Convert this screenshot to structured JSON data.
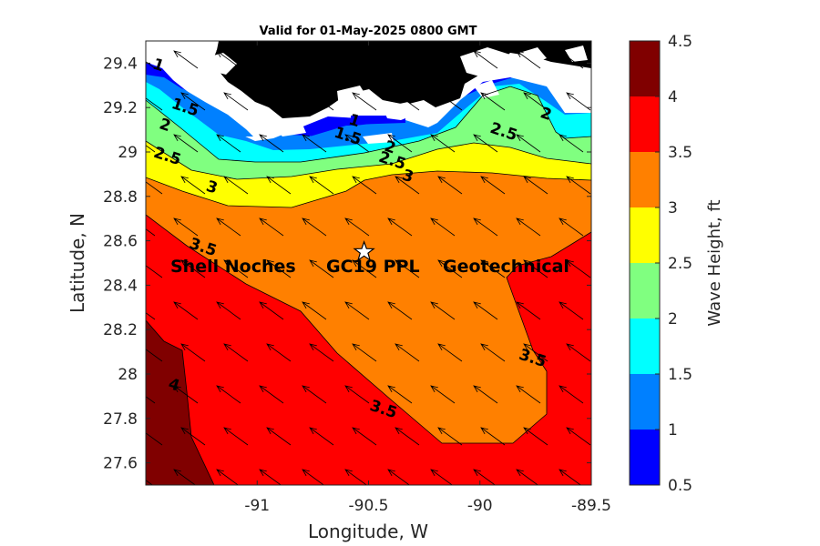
{
  "chart_data": {
    "type": "contour",
    "title": "Valid for 01-May-2025 0800 GMT",
    "xlabel": "Longitude, W",
    "ylabel": "Latitude, N",
    "xlim": [
      -91.5,
      -89.5
    ],
    "ylim": [
      27.5,
      29.5
    ],
    "xticks": [
      -91,
      -90.5,
      -90,
      -89.5
    ],
    "xtick_labels": [
      "-91",
      "-90.5",
      "-90",
      "-89.5"
    ],
    "yticks": [
      27.6,
      27.8,
      28,
      28.2,
      28.4,
      28.6,
      28.8,
      29,
      29.2,
      29.4
    ],
    "ytick_labels": [
      "27.6",
      "27.8",
      "28",
      "28.2",
      "28.4",
      "28.6",
      "28.8",
      "29",
      "29.2",
      "29.4"
    ],
    "colorbar": {
      "label": "Wave Height, ft",
      "min": 0.5,
      "max": 4.5,
      "ticks": [
        "0.5",
        "1",
        "1.5",
        "2",
        "2.5",
        "3",
        "3.5",
        "4",
        "4.5"
      ],
      "bands": [
        {
          "from": 0.5,
          "to": 1.0,
          "color": "#0000ff"
        },
        {
          "from": 1.0,
          "to": 1.5,
          "color": "#0080ff"
        },
        {
          "from": 1.5,
          "to": 2.0,
          "color": "#00ffff"
        },
        {
          "from": 2.0,
          "to": 2.5,
          "color": "#80ff80"
        },
        {
          "from": 2.5,
          "to": 3.0,
          "color": "#ffff00"
        },
        {
          "from": 3.0,
          "to": 3.5,
          "color": "#ff8000"
        },
        {
          "from": 3.5,
          "to": 4.0,
          "color": "#ff0000"
        },
        {
          "from": 4.0,
          "to": 4.5,
          "color": "#800000"
        }
      ]
    },
    "contour_levels": [
      1,
      1.5,
      2,
      2.5,
      3,
      3.5,
      4
    ],
    "contour_labels": [
      {
        "text": "1",
        "lon": -91.45,
        "lat": 29.37
      },
      {
        "text": "1.5",
        "lon": -91.33,
        "lat": 29.18
      },
      {
        "text": "2",
        "lon": -91.42,
        "lat": 29.1
      },
      {
        "text": "2.5",
        "lon": -91.41,
        "lat": 28.96
      },
      {
        "text": "3",
        "lon": -91.21,
        "lat": 28.82
      },
      {
        "text": "3.5",
        "lon": -91.25,
        "lat": 28.55
      },
      {
        "text": "4",
        "lon": -91.38,
        "lat": 27.93
      },
      {
        "text": "1",
        "lon": -90.57,
        "lat": 29.12
      },
      {
        "text": "1.5",
        "lon": -90.6,
        "lat": 29.05
      },
      {
        "text": "2",
        "lon": -90.41,
        "lat": 29.0
      },
      {
        "text": "2.5",
        "lon": -90.4,
        "lat": 28.94
      },
      {
        "text": "3",
        "lon": -90.33,
        "lat": 28.87
      },
      {
        "text": "2.5",
        "lon": -89.9,
        "lat": 29.07
      },
      {
        "text": "2",
        "lon": -89.71,
        "lat": 29.15
      },
      {
        "text": "3.5",
        "lon": -90.44,
        "lat": 27.82
      },
      {
        "text": "3.5",
        "lon": -89.77,
        "lat": 28.05
      }
    ],
    "wind_direction": "arrows point toward the northwest",
    "site": {
      "name": "GC19 PPL",
      "lon": -90.52,
      "lat": 28.55,
      "marker": "star",
      "label_left": "Shell Noches",
      "label_center": "GC19 PPL",
      "label_right": "Geotechnical"
    },
    "land_color": "#000000",
    "grid": false
  }
}
